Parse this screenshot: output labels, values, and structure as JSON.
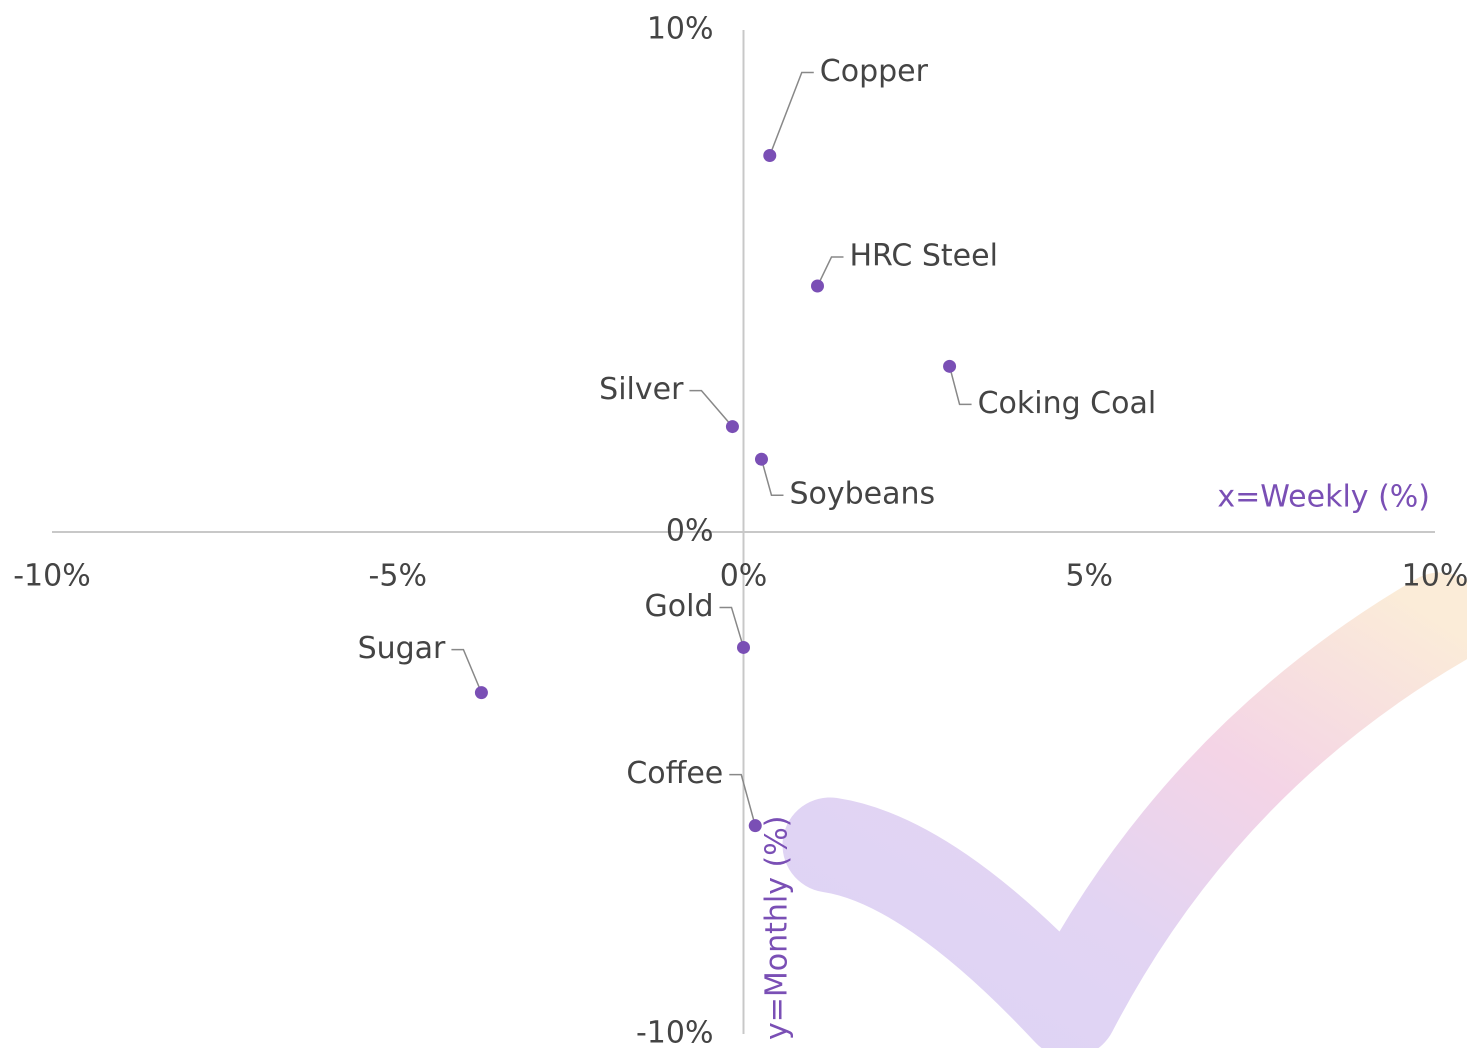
{
  "chart_data": {
    "type": "scatter",
    "x_label": "x=Weekly (%)",
    "y_label": "y=Monthly (%)",
    "labels": [
      "Copper",
      "HRC Steel",
      "Coking Coal",
      "Silver",
      "Soybeans",
      "Gold",
      "Sugar",
      "Coffee"
    ],
    "x": [
      0.38,
      1.07,
      2.98,
      -0.16,
      0.26,
      0,
      -3.79,
      0.17
    ],
    "y": [
      7.5,
      4.9,
      3.3,
      2.1,
      1.45,
      -2.3,
      -3.2,
      -5.85
    ],
    "color": "#7a4fb5",
    "xlim": [
      -10,
      10
    ],
    "ylim": [
      -10,
      10
    ],
    "xticks": [
      {
        "value": -10,
        "label": "-10%"
      },
      {
        "value": -5,
        "label": "-5%"
      },
      {
        "value": 0,
        "label": "0%"
      },
      {
        "value": 5,
        "label": "5%"
      },
      {
        "value": 10,
        "label": "10%"
      }
    ],
    "yticks": [
      {
        "value": -10,
        "label": "-10%"
      },
      {
        "value": 0,
        "label": "0%"
      },
      {
        "value": 10,
        "label": "10%"
      }
    ]
  }
}
